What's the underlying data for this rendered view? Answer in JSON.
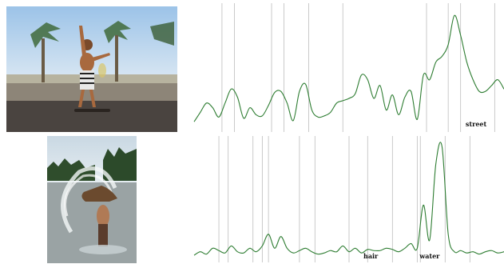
{
  "chart_data": [
    {
      "type": "line",
      "title": "",
      "xlabel": "",
      "ylabel": "",
      "grid": false,
      "line_color": "#2e7d32",
      "xlim": [
        0,
        100
      ],
      "ylim": [
        0,
        1
      ],
      "x": [
        0,
        2,
        4,
        6,
        8,
        10,
        12,
        14,
        16,
        18,
        20,
        22,
        24,
        26,
        28,
        30,
        32,
        34,
        36,
        38,
        40,
        42,
        44,
        46,
        48,
        50,
        52,
        54,
        56,
        58,
        60,
        62,
        64,
        66,
        68,
        70,
        72,
        74,
        76,
        78,
        80,
        82,
        84,
        86,
        88,
        90,
        92,
        94,
        96,
        98,
        100
      ],
      "y": [
        0.04,
        0.12,
        0.2,
        0.16,
        0.08,
        0.2,
        0.32,
        0.25,
        0.07,
        0.16,
        0.1,
        0.09,
        0.18,
        0.29,
        0.3,
        0.2,
        0.05,
        0.3,
        0.36,
        0.14,
        0.08,
        0.09,
        0.12,
        0.2,
        0.22,
        0.24,
        0.28,
        0.44,
        0.4,
        0.24,
        0.35,
        0.14,
        0.27,
        0.1,
        0.25,
        0.3,
        0.06,
        0.44,
        0.4,
        0.55,
        0.6,
        0.7,
        0.95,
        0.78,
        0.55,
        0.4,
        0.3,
        0.3,
        0.35,
        0.4,
        0.32
      ],
      "markers": [
        9,
        13,
        25,
        29,
        37,
        48,
        75,
        82,
        86,
        97
      ],
      "annotations": [
        {
          "x": 91,
          "text": "street"
        }
      ]
    },
    {
      "type": "line",
      "title": "",
      "xlabel": "",
      "ylabel": "",
      "grid": false,
      "line_color": "#2e7d32",
      "xlim": [
        0,
        100
      ],
      "ylim": [
        0,
        1
      ],
      "x": [
        0,
        2,
        4,
        6,
        8,
        10,
        12,
        14,
        16,
        18,
        20,
        22,
        24,
        26,
        28,
        30,
        32,
        34,
        36,
        38,
        40,
        42,
        44,
        46,
        48,
        50,
        52,
        54,
        56,
        58,
        60,
        62,
        64,
        66,
        68,
        70,
        72,
        74,
        76,
        78,
        80,
        82,
        84,
        86,
        88,
        90,
        92,
        94,
        96,
        98,
        100
      ],
      "y": [
        0.02,
        0.05,
        0.03,
        0.08,
        0.06,
        0.04,
        0.1,
        0.05,
        0.04,
        0.08,
        0.05,
        0.1,
        0.2,
        0.08,
        0.18,
        0.08,
        0.04,
        0.06,
        0.08,
        0.05,
        0.03,
        0.04,
        0.06,
        0.05,
        0.1,
        0.05,
        0.08,
        0.04,
        0.07,
        0.06,
        0.06,
        0.08,
        0.07,
        0.05,
        0.08,
        0.12,
        0.08,
        0.45,
        0.15,
        0.8,
        0.95,
        0.2,
        0.05,
        0.06,
        0.04,
        0.05,
        0.03,
        0.05,
        0.06,
        0.04,
        0.05
      ],
      "markers": [
        8,
        11,
        19,
        22,
        24,
        34,
        39,
        50,
        56,
        64,
        72,
        73,
        81,
        89
      ],
      "annotations": [
        {
          "x": 57,
          "text": "hair"
        },
        {
          "x": 76,
          "text": "water"
        }
      ]
    }
  ]
}
